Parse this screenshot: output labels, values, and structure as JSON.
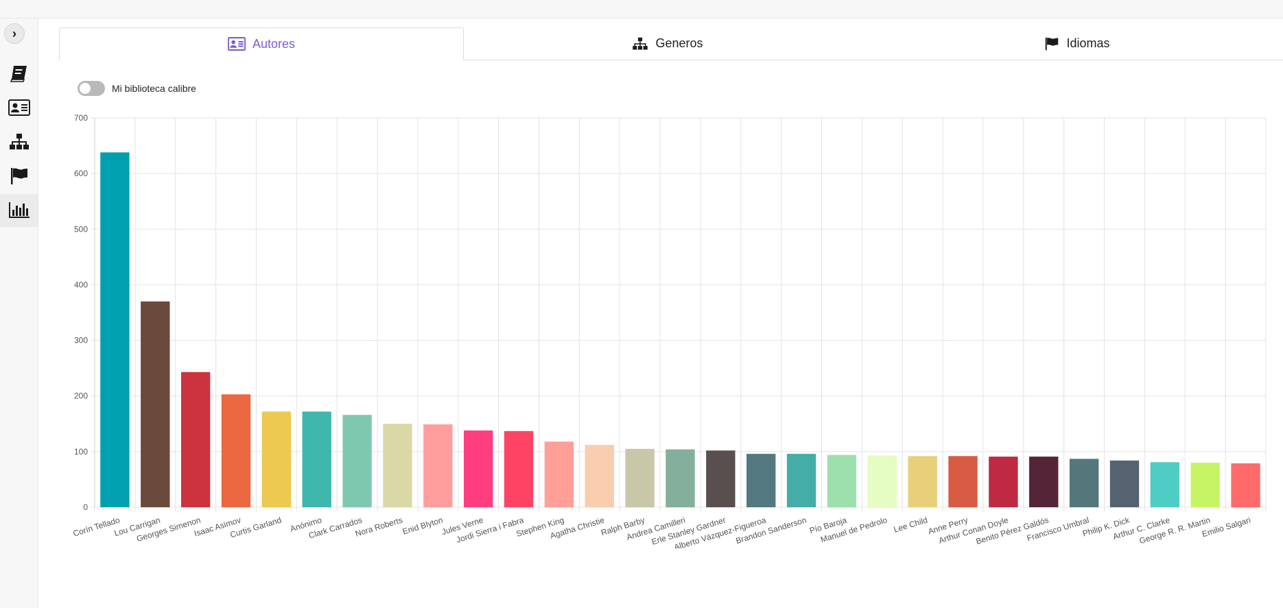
{
  "tabs": [
    {
      "label": "Autores",
      "icon": "address-card-icon",
      "active": true
    },
    {
      "label": "Generos",
      "icon": "sitemap-icon",
      "active": false
    },
    {
      "label": "Idiomas",
      "icon": "flag-icon",
      "active": false
    }
  ],
  "sidebar": {
    "toggle": "›",
    "items": [
      {
        "icon": "book-icon"
      },
      {
        "icon": "address-card-icon"
      },
      {
        "icon": "sitemap-icon"
      },
      {
        "icon": "flag-icon"
      },
      {
        "icon": "bar-chart-icon",
        "active": true
      }
    ]
  },
  "switch": {
    "label": "Mi biblioteca calibre",
    "on": false
  },
  "colors": {
    "accent": "#7b5cd6",
    "sidebar_bg": "#f7f7f7"
  },
  "chart_data": {
    "type": "bar",
    "title": "",
    "xlabel": "",
    "ylabel": "",
    "ylim": [
      0,
      700
    ],
    "yticks": [
      0,
      100,
      200,
      300,
      400,
      500,
      600,
      700
    ],
    "grid": true,
    "categories": [
      "Corín Tellado",
      "Lou Carrigan",
      "Georges Simenon",
      "Isaac Asimov",
      "Curtis Garland",
      "Anónimo",
      "Clark Carrados",
      "Nora Roberts",
      "Enid Blyton",
      "Jules Verne",
      "Jordi Sierra i Fabra",
      "Stephen King",
      "Agatha Christie",
      "Ralph Barby",
      "Andrea Camilleri",
      "Erle Stanley Gardner",
      "Alberto Vázquez-Figueroa",
      "Brandon Sanderson",
      "Pío Baroja",
      "Manuel de Pedrolo",
      "Lee Child",
      "Anne Perry",
      "Arthur Conan Doyle",
      "Benito Pérez Galdós",
      "Francisco Umbral",
      "Philip K. Dick",
      "Arthur C. Clarke",
      "George R. R. Martin",
      "Emilio Salgari"
    ],
    "values": [
      638,
      370,
      243,
      203,
      172,
      172,
      166,
      150,
      149,
      138,
      137,
      118,
      112,
      105,
      104,
      102,
      96,
      96,
      94,
      93,
      92,
      92,
      91,
      91,
      87,
      84,
      81,
      80,
      79
    ],
    "colors": [
      "#00a0b0",
      "#6a4a3c",
      "#cc333f",
      "#eb6841",
      "#edc951",
      "#40b7ad",
      "#7fc8b0",
      "#dad8a7",
      "#ff9e9d",
      "#ff3d7f",
      "#ff4365",
      "#ff9f97",
      "#f9cdad",
      "#c8c8a9",
      "#83af9b",
      "#594f4f",
      "#547980",
      "#45ada8",
      "#9de0ad",
      "#e5fcc2",
      "#e8cf7a",
      "#d95b43",
      "#c02942",
      "#542437",
      "#53777a",
      "#556270",
      "#4ecdc4",
      "#c7f464",
      "#ff6b6b"
    ]
  }
}
